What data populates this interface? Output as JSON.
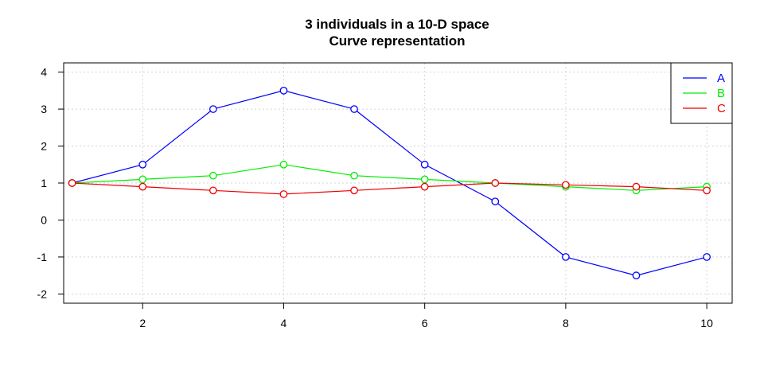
{
  "chart_data": {
    "type": "line",
    "title": "3 individuals in a 10-D space",
    "subtitle": "Curve representation",
    "xlabel": "",
    "ylabel": "",
    "x": [
      1,
      2,
      3,
      4,
      5,
      6,
      7,
      8,
      9,
      10
    ],
    "xlim": [
      0.88,
      10.36
    ],
    "ylim": [
      -2.25,
      4.25
    ],
    "xticks": [
      2,
      4,
      6,
      8,
      10
    ],
    "yticks": [
      -2,
      -1,
      0,
      1,
      2,
      3,
      4
    ],
    "grid": true,
    "legend_position": "top-right",
    "series": [
      {
        "name": "A",
        "color": "#0000ff",
        "values": [
          1,
          1.5,
          3,
          3.5,
          3,
          1.5,
          0.5,
          -1,
          -1.5,
          -1
        ]
      },
      {
        "name": "B",
        "color": "#00ee00",
        "values": [
          1,
          1.1,
          1.2,
          1.5,
          1.2,
          1.1,
          1,
          0.9,
          0.8,
          0.9
        ]
      },
      {
        "name": "C",
        "color": "#ee0000",
        "values": [
          1,
          0.9,
          0.8,
          0.7,
          0.8,
          0.9,
          1,
          0.95,
          0.9,
          0.8
        ]
      }
    ]
  }
}
